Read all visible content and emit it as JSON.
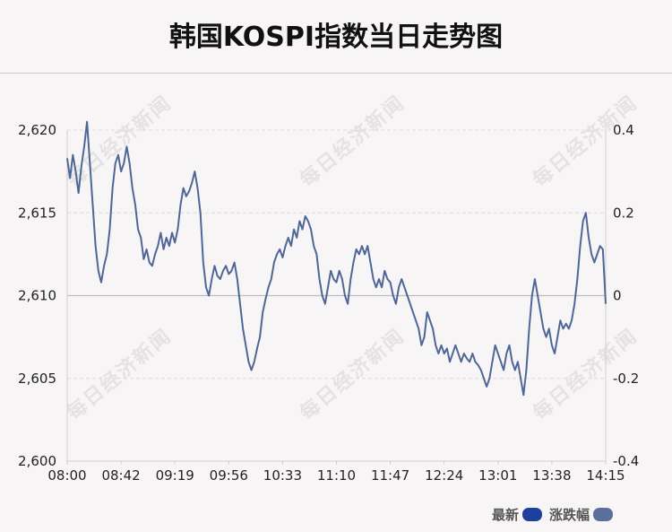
{
  "title": "韩国KOSPI指数当日走势图",
  "watermark": "每日经济新闻",
  "legend": [
    {
      "label": "最新",
      "color": "#1f3f9e"
    },
    {
      "label": "涨跌幅",
      "color": "#5a6f99"
    }
  ],
  "chart_data": {
    "type": "line",
    "title": "韩国KOSPI指数当日走势图",
    "x_ticks": [
      "08:00",
      "08:42",
      "09:19",
      "09:56",
      "10:33",
      "11:10",
      "11:47",
      "12:24",
      "13:01",
      "13:38",
      "14:15"
    ],
    "y_left": {
      "ticks": [
        "2,600",
        "2,605",
        "2,610",
        "2,615",
        "2,620"
      ],
      "min": 2600,
      "max": 2620
    },
    "y_right": {
      "ticks": [
        "-0.4",
        "-0.2",
        "0",
        "0.2",
        "0.4"
      ],
      "min": -0.4,
      "max": 0.4
    },
    "grid": true,
    "line_color": "#4f6797",
    "series": [
      {
        "values": [
          2618.3,
          2617.1,
          2618.5,
          2617.5,
          2616.2,
          2617.8,
          2619.0,
          2620.5,
          2618.0,
          2615.5,
          2613.0,
          2611.5,
          2610.8,
          2611.8,
          2612.5,
          2614.0,
          2616.5,
          2618.0,
          2618.5,
          2617.5,
          2618.0,
          2619.0,
          2618.0,
          2616.5,
          2615.5,
          2614.0,
          2613.5,
          2612.2,
          2612.8,
          2612.0,
          2611.8,
          2612.5,
          2613.0,
          2613.8,
          2612.8,
          2613.5,
          2613.0,
          2613.8,
          2613.2,
          2614.0,
          2615.5,
          2616.5,
          2616.0,
          2616.3,
          2616.8,
          2617.5,
          2616.5,
          2615.0,
          2612.0,
          2610.5,
          2610.0,
          2611.0,
          2611.8,
          2611.2,
          2611.0,
          2611.5,
          2611.8,
          2611.3,
          2611.5,
          2612.0,
          2611.0,
          2609.5,
          2608.0,
          2607.0,
          2606.0,
          2605.5,
          2606.0,
          2606.8,
          2607.5,
          2609.0,
          2609.8,
          2610.5,
          2611.0,
          2612.0,
          2612.5,
          2612.8,
          2612.3,
          2613.0,
          2613.5,
          2613.0,
          2614.0,
          2613.5,
          2614.5,
          2614.0,
          2614.8,
          2614.5,
          2614.0,
          2613.0,
          2612.5,
          2611.0,
          2610.0,
          2609.5,
          2610.5,
          2611.5,
          2611.0,
          2610.8,
          2611.5,
          2611.0,
          2610.0,
          2609.5,
          2611.0,
          2612.0,
          2612.8,
          2612.5,
          2613.0,
          2612.5,
          2613.0,
          2612.0,
          2611.0,
          2610.5,
          2611.0,
          2610.5,
          2611.5,
          2611.0,
          2610.8,
          2610.0,
          2609.5,
          2610.5,
          2611.0,
          2610.5,
          2610.0,
          2609.5,
          2609.0,
          2608.5,
          2608.0,
          2607.0,
          2607.5,
          2609.0,
          2608.5,
          2608.0,
          2607.0,
          2606.5,
          2607.0,
          2606.5,
          2606.8,
          2606.0,
          2606.5,
          2607.0,
          2606.5,
          2606.0,
          2606.5,
          2606.2,
          2606.0,
          2606.5,
          2606.0,
          2605.8,
          2605.5,
          2605.0,
          2604.5,
          2605.0,
          2606.0,
          2607.0,
          2606.5,
          2606.0,
          2605.5,
          2606.5,
          2607.0,
          2606.0,
          2605.5,
          2606.0,
          2605.0,
          2604.0,
          2605.5,
          2608.0,
          2610.0,
          2611.0,
          2610.0,
          2609.0,
          2608.0,
          2607.5,
          2608.0,
          2607.0,
          2606.5,
          2607.5,
          2608.5,
          2608.0,
          2608.3,
          2608.0,
          2608.5,
          2609.5,
          2611.0,
          2613.0,
          2614.5,
          2615.0,
          2613.5,
          2612.5,
          2612.0,
          2612.5,
          2613.0,
          2612.8,
          2609.5
        ]
      }
    ]
  }
}
